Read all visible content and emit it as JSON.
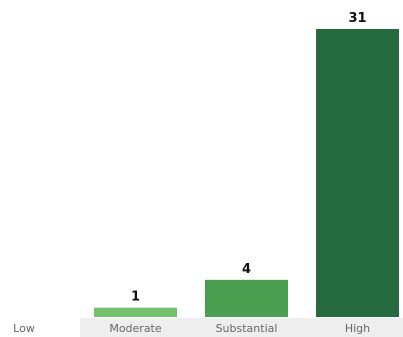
{
  "chart_data": {
    "type": "bar",
    "categories": [
      "Low",
      "Moderate",
      "Substantial",
      "High"
    ],
    "values": [
      0,
      1,
      4,
      31
    ],
    "data_labels": [
      "",
      "1",
      "4",
      "31"
    ],
    "title": "",
    "xlabel": "",
    "ylabel": "",
    "ylim": [
      0,
      31
    ],
    "grid": false,
    "colors": [
      "#ffffff",
      "#74c06c",
      "#4a9e50",
      "#256b3f"
    ],
    "category_band_color": "#eeeeee"
  }
}
